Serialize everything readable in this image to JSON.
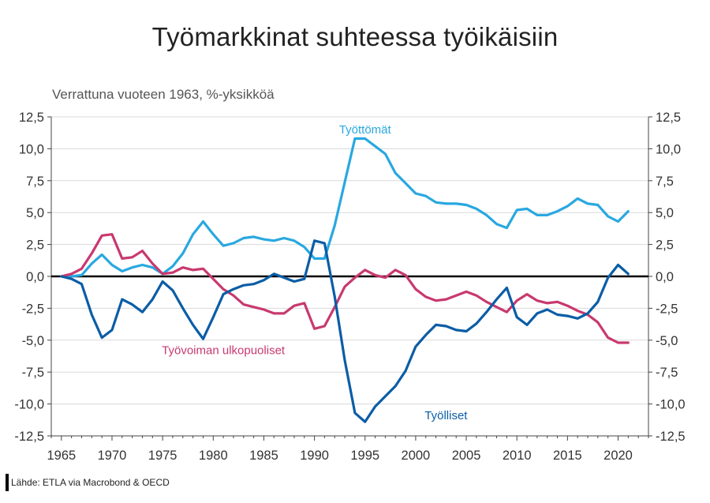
{
  "title": "Työmarkkinat suhteessa työikäisiin",
  "subtitle": "Verrattuna vuoteen 1963, %-yksikköä",
  "source": "Lähde: ETLA via Macrobond & OECD",
  "colors": {
    "unemployed": "#29a8e0",
    "employed": "#0b5da6",
    "outside": "#c8396f",
    "zero_line": "#000000",
    "grid": "#d9d9d9"
  },
  "chart_data": {
    "type": "line",
    "title": "Työmarkkinat suhteessa työikäisiin",
    "subtitle": "Verrattuna vuoteen 1963, %-yksikköä",
    "xlim": [
      1964,
      2023
    ],
    "ylim": [
      -12.5,
      12.5
    ],
    "y_ticks": [
      12.5,
      10.0,
      7.5,
      5.0,
      2.5,
      0.0,
      -2.5,
      -5.0,
      -7.5,
      -10.0,
      -12.5
    ],
    "y_tick_labels": [
      "12,5",
      "10,0",
      "7,5",
      "5,0",
      "2,5",
      "0,0",
      "-2,5",
      "-5,0",
      "-7,5",
      "-10,0",
      "-12,5"
    ],
    "x_ticks": [
      1965,
      1970,
      1975,
      1980,
      1985,
      1990,
      1995,
      2000,
      2005,
      2010,
      2015,
      2020
    ],
    "x_tick_labels": [
      "1965",
      "1970",
      "1975",
      "1980",
      "1985",
      "1990",
      "1995",
      "2000",
      "2005",
      "2010",
      "2015",
      "2020"
    ],
    "grid": "horizontal",
    "series": [
      {
        "name": "Työttömät",
        "color_key": "unemployed",
        "points": [
          [
            1965,
            0.0
          ],
          [
            1966,
            0.0
          ],
          [
            1967,
            0.1
          ],
          [
            1968,
            1.0
          ],
          [
            1969,
            1.7
          ],
          [
            1970,
            0.9
          ],
          [
            1971,
            0.4
          ],
          [
            1972,
            0.7
          ],
          [
            1973,
            0.9
          ],
          [
            1974,
            0.7
          ],
          [
            1975,
            0.2
          ],
          [
            1976,
            0.8
          ],
          [
            1977,
            1.8
          ],
          [
            1978,
            3.3
          ],
          [
            1979,
            4.3
          ],
          [
            1980,
            3.3
          ],
          [
            1981,
            2.4
          ],
          [
            1982,
            2.6
          ],
          [
            1983,
            3.0
          ],
          [
            1984,
            3.1
          ],
          [
            1985,
            2.9
          ],
          [
            1986,
            2.8
          ],
          [
            1987,
            3.0
          ],
          [
            1988,
            2.8
          ],
          [
            1989,
            2.3
          ],
          [
            1990,
            1.4
          ],
          [
            1991,
            1.4
          ],
          [
            1992,
            4.0
          ],
          [
            1993,
            7.4
          ],
          [
            1994,
            10.8
          ],
          [
            1995,
            10.8
          ],
          [
            1996,
            10.2
          ],
          [
            1997,
            9.6
          ],
          [
            1998,
            8.1
          ],
          [
            1999,
            7.3
          ],
          [
            2000,
            6.5
          ],
          [
            2001,
            6.3
          ],
          [
            2002,
            5.8
          ],
          [
            2003,
            5.7
          ],
          [
            2004,
            5.7
          ],
          [
            2005,
            5.6
          ],
          [
            2006,
            5.3
          ],
          [
            2007,
            4.8
          ],
          [
            2008,
            4.1
          ],
          [
            2009,
            3.8
          ],
          [
            2010,
            5.2
          ],
          [
            2011,
            5.3
          ],
          [
            2012,
            4.8
          ],
          [
            2013,
            4.8
          ],
          [
            2014,
            5.1
          ],
          [
            2015,
            5.5
          ],
          [
            2016,
            6.1
          ],
          [
            2017,
            5.7
          ],
          [
            2018,
            5.6
          ],
          [
            2019,
            4.7
          ],
          [
            2020,
            4.3
          ],
          [
            2021,
            5.1
          ]
        ]
      },
      {
        "name": "Työvoiman ulkopuoliset",
        "color_key": "outside",
        "points": [
          [
            1965,
            0.0
          ],
          [
            1966,
            0.2
          ],
          [
            1967,
            0.6
          ],
          [
            1968,
            1.8
          ],
          [
            1969,
            3.2
          ],
          [
            1970,
            3.3
          ],
          [
            1971,
            1.4
          ],
          [
            1972,
            1.5
          ],
          [
            1973,
            2.0
          ],
          [
            1974,
            1.0
          ],
          [
            1975,
            0.2
          ],
          [
            1976,
            0.3
          ],
          [
            1977,
            0.7
          ],
          [
            1978,
            0.5
          ],
          [
            1979,
            0.6
          ],
          [
            1980,
            -0.2
          ],
          [
            1981,
            -1.0
          ],
          [
            1982,
            -1.5
          ],
          [
            1983,
            -2.2
          ],
          [
            1984,
            -2.4
          ],
          [
            1985,
            -2.6
          ],
          [
            1986,
            -2.9
          ],
          [
            1987,
            -2.9
          ],
          [
            1988,
            -2.3
          ],
          [
            1989,
            -2.1
          ],
          [
            1990,
            -4.1
          ],
          [
            1991,
            -3.9
          ],
          [
            1992,
            -2.4
          ],
          [
            1993,
            -0.8
          ],
          [
            1994,
            -0.1
          ],
          [
            1995,
            0.5
          ],
          [
            1996,
            0.1
          ],
          [
            1997,
            -0.1
          ],
          [
            1998,
            0.5
          ],
          [
            1999,
            0.1
          ],
          [
            2000,
            -1.0
          ],
          [
            2001,
            -1.6
          ],
          [
            2002,
            -1.9
          ],
          [
            2003,
            -1.8
          ],
          [
            2004,
            -1.5
          ],
          [
            2005,
            -1.2
          ],
          [
            2006,
            -1.5
          ],
          [
            2007,
            -2.0
          ],
          [
            2008,
            -2.4
          ],
          [
            2009,
            -2.8
          ],
          [
            2010,
            -1.9
          ],
          [
            2011,
            -1.4
          ],
          [
            2012,
            -1.9
          ],
          [
            2013,
            -2.1
          ],
          [
            2014,
            -2.0
          ],
          [
            2015,
            -2.3
          ],
          [
            2016,
            -2.7
          ],
          [
            2017,
            -3.0
          ],
          [
            2018,
            -3.6
          ],
          [
            2019,
            -4.8
          ],
          [
            2020,
            -5.2
          ],
          [
            2021,
            -5.2
          ]
        ]
      },
      {
        "name": "Työlliset",
        "color_key": "employed",
        "points": [
          [
            1965,
            0.0
          ],
          [
            1966,
            -0.2
          ],
          [
            1967,
            -0.6
          ],
          [
            1968,
            -3.0
          ],
          [
            1969,
            -4.8
          ],
          [
            1970,
            -4.2
          ],
          [
            1971,
            -1.8
          ],
          [
            1972,
            -2.2
          ],
          [
            1973,
            -2.8
          ],
          [
            1974,
            -1.8
          ],
          [
            1975,
            -0.4
          ],
          [
            1976,
            -1.1
          ],
          [
            1977,
            -2.5
          ],
          [
            1978,
            -3.8
          ],
          [
            1979,
            -4.9
          ],
          [
            1980,
            -3.2
          ],
          [
            1981,
            -1.4
          ],
          [
            1982,
            -1.0
          ],
          [
            1983,
            -0.7
          ],
          [
            1984,
            -0.6
          ],
          [
            1985,
            -0.3
          ],
          [
            1986,
            0.2
          ],
          [
            1987,
            -0.1
          ],
          [
            1988,
            -0.4
          ],
          [
            1989,
            -0.2
          ],
          [
            1990,
            2.8
          ],
          [
            1991,
            2.6
          ],
          [
            1992,
            -1.6
          ],
          [
            1993,
            -6.6
          ],
          [
            1994,
            -10.7
          ],
          [
            1995,
            -11.4
          ],
          [
            1996,
            -10.2
          ],
          [
            1997,
            -9.4
          ],
          [
            1998,
            -8.6
          ],
          [
            1999,
            -7.4
          ],
          [
            2000,
            -5.5
          ],
          [
            2001,
            -4.6
          ],
          [
            2002,
            -3.8
          ],
          [
            2003,
            -3.9
          ],
          [
            2004,
            -4.2
          ],
          [
            2005,
            -4.3
          ],
          [
            2006,
            -3.7
          ],
          [
            2007,
            -2.8
          ],
          [
            2008,
            -1.8
          ],
          [
            2009,
            -0.9
          ],
          [
            2010,
            -3.2
          ],
          [
            2011,
            -3.8
          ],
          [
            2012,
            -2.9
          ],
          [
            2013,
            -2.6
          ],
          [
            2014,
            -3.0
          ],
          [
            2015,
            -3.1
          ],
          [
            2016,
            -3.3
          ],
          [
            2017,
            -2.9
          ],
          [
            2018,
            -2.0
          ],
          [
            2019,
            -0.1
          ],
          [
            2020,
            0.9
          ],
          [
            2021,
            0.2
          ]
        ]
      }
    ],
    "series_labels": [
      {
        "series": "Työttömät",
        "text": "Työttömät",
        "x": 1995,
        "y": 11.2
      },
      {
        "series": "Työvoiman ulkopuoliset",
        "text": "Työvoiman ulkopuoliset",
        "x": 1981,
        "y": -6.1
      },
      {
        "series": "Työlliset",
        "text": "Työlliset",
        "x": 2003,
        "y": -11.2
      }
    ]
  }
}
